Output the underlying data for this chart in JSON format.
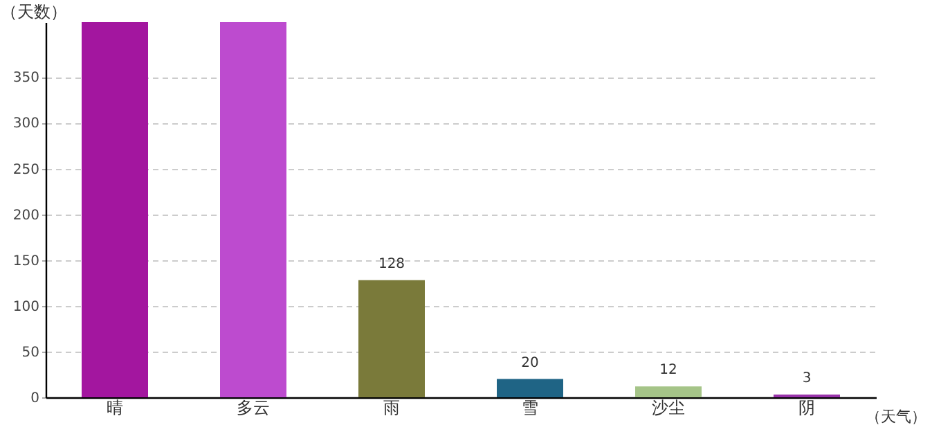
{
  "chart_data": {
    "type": "bar",
    "xlabel": "（天气）",
    "ylabel": "（天数）",
    "categories": [
      "晴",
      "多云",
      "雨",
      "雪",
      "沙尘",
      "阴"
    ],
    "values": [
      410,
      410,
      128,
      20,
      12,
      3
    ],
    "value_labels": [
      null,
      null,
      "128",
      "20",
      "12",
      "3"
    ],
    "colors": [
      "#a3169f",
      "#bd4bcf",
      "#7a7a3a",
      "#1f6485",
      "#a5c488",
      "#9933aa"
    ],
    "ylim": [
      0,
      410
    ],
    "yticks": [
      0,
      50,
      100,
      150,
      200,
      250,
      300,
      350
    ],
    "grid": "y"
  }
}
